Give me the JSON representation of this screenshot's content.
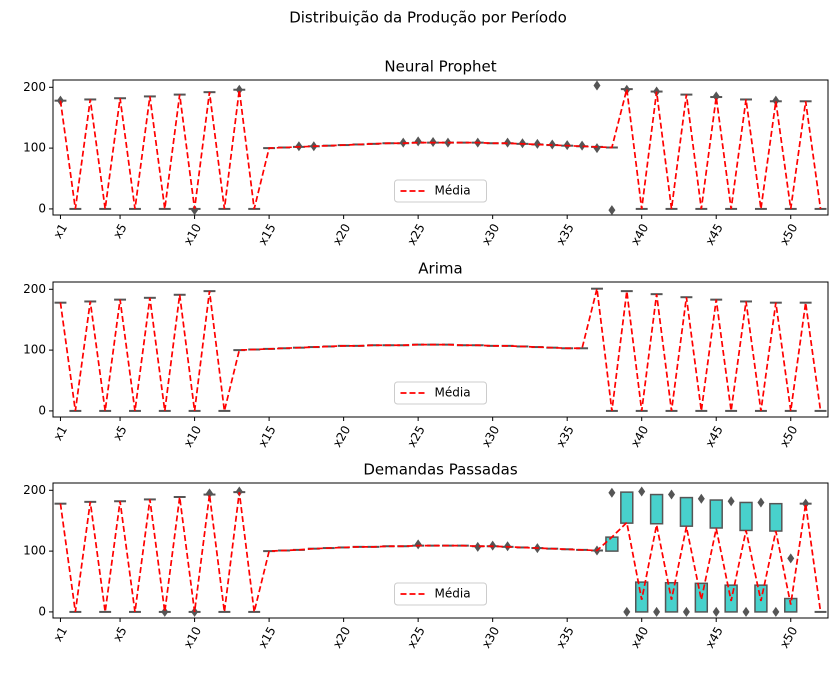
{
  "suptitle": "Distribuição da Produção por Período",
  "chart_data": [
    {
      "type": "box",
      "title": "Neural Prophet",
      "categories": [
        "x1",
        null,
        null,
        null,
        "x5",
        null,
        null,
        null,
        null,
        "x10",
        null,
        null,
        null,
        null,
        "x15",
        null,
        null,
        null,
        null,
        "x20",
        null,
        null,
        null,
        null,
        "x25",
        null,
        null,
        null,
        null,
        "x30",
        null,
        null,
        null,
        null,
        "x35",
        null,
        null,
        null,
        null,
        "x40",
        null,
        null,
        null,
        null,
        "x45",
        null,
        null,
        null,
        null,
        "x50",
        null,
        null
      ],
      "series": [
        {
          "name": "Média",
          "color": "#ff0000",
          "values": [
            178,
            0,
            180,
            0,
            182,
            0,
            185,
            0,
            188,
            0,
            192,
            0,
            196,
            0,
            100,
            101,
            102,
            103,
            104,
            105,
            106,
            107,
            108,
            108,
            109,
            109,
            109,
            109,
            109,
            108,
            108,
            107,
            106,
            105,
            104,
            103,
            102,
            101,
            197,
            0,
            193,
            0,
            188,
            0,
            184,
            0,
            180,
            0,
            177,
            0,
            177,
            0
          ]
        }
      ],
      "boxes": [
        178,
        0,
        180,
        0,
        182,
        0,
        185,
        0,
        188,
        0,
        192,
        0,
        196,
        0,
        100,
        101,
        102,
        103,
        104,
        105,
        106,
        107,
        108,
        108,
        109,
        109,
        109,
        109,
        109,
        108,
        108,
        107,
        106,
        105,
        104,
        103,
        102,
        101,
        197,
        0,
        193,
        0,
        188,
        0,
        184,
        0,
        180,
        0,
        177,
        0,
        177,
        0
      ],
      "outliers": [
        [
          178
        ],
        [],
        [],
        [],
        [],
        [],
        [],
        [],
        [],
        [
          -2
        ],
        [],
        [],
        [
          196
        ],
        [],
        [],
        [],
        [
          103
        ],
        [
          103
        ],
        [],
        [],
        [],
        [],
        [],
        [
          109
        ],
        [
          111
        ],
        [
          110
        ],
        [
          109
        ],
        [],
        [
          109
        ],
        [],
        [
          109
        ],
        [
          108
        ],
        [
          107
        ],
        [
          106
        ],
        [
          105
        ],
        [
          104
        ],
        [
          203,
          100
        ],
        [
          -2
        ],
        [
          196
        ],
        [],
        [
          193
        ],
        [],
        [],
        [],
        [
          185
        ],
        [],
        [],
        [],
        [
          178
        ],
        [],
        [],
        []
      ],
      "box_color": "#48d1cc",
      "ylim": [
        -10,
        212
      ],
      "yticks": [
        0,
        100,
        200
      ],
      "legend": "lower center"
    },
    {
      "type": "box",
      "title": "Arima",
      "categories": [
        "x1",
        null,
        null,
        null,
        "x5",
        null,
        null,
        null,
        null,
        "x10",
        null,
        null,
        null,
        null,
        "x15",
        null,
        null,
        null,
        null,
        "x20",
        null,
        null,
        null,
        null,
        "x25",
        null,
        null,
        null,
        null,
        "x30",
        null,
        null,
        null,
        null,
        "x35",
        null,
        null,
        null,
        null,
        "x40",
        null,
        null,
        null,
        null,
        "x45",
        null,
        null,
        null,
        null,
        "x50",
        null,
        null
      ],
      "series": [
        {
          "name": "Média",
          "color": "#ff0000",
          "values": [
            178,
            0,
            180,
            0,
            183,
            0,
            186,
            0,
            191,
            0,
            197,
            0,
            100,
            101,
            102,
            103,
            104,
            105,
            106,
            107,
            107,
            108,
            108,
            108,
            109,
            109,
            109,
            108,
            108,
            107,
            107,
            106,
            105,
            104,
            103,
            103,
            201,
            0,
            197,
            0,
            192,
            0,
            187,
            0,
            183,
            0,
            180,
            0,
            178,
            0,
            178,
            0
          ]
        }
      ],
      "boxes": [
        178,
        0,
        180,
        0,
        183,
        0,
        186,
        0,
        191,
        0,
        197,
        0,
        100,
        101,
        102,
        103,
        104,
        105,
        106,
        107,
        107,
        108,
        108,
        108,
        109,
        109,
        109,
        108,
        108,
        107,
        107,
        106,
        105,
        104,
        103,
        103,
        201,
        0,
        197,
        0,
        192,
        0,
        187,
        0,
        183,
        0,
        180,
        0,
        178,
        0,
        178,
        0
      ],
      "box_color": "#48d1cc",
      "ylim": [
        -10,
        212
      ],
      "yticks": [
        0,
        100,
        200
      ],
      "legend": "lower center"
    },
    {
      "type": "box",
      "title": "Demandas Passadas",
      "categories": [
        "x1",
        null,
        null,
        null,
        "x5",
        null,
        null,
        null,
        null,
        "x10",
        null,
        null,
        null,
        null,
        "x15",
        null,
        null,
        null,
        null,
        "x20",
        null,
        null,
        null,
        null,
        "x25",
        null,
        null,
        null,
        null,
        "x30",
        null,
        null,
        null,
        null,
        "x35",
        null,
        null,
        null,
        null,
        "x40",
        null,
        null,
        null,
        null,
        "x45",
        null,
        null,
        null,
        null,
        "x50",
        null,
        null
      ],
      "series": [
        {
          "name": "Média",
          "color": "#ff0000",
          "values": [
            178,
            0,
            181,
            0,
            182,
            0,
            185,
            0,
            189,
            0,
            193,
            0,
            197,
            0,
            100,
            101,
            102,
            104,
            105,
            106,
            107,
            107,
            108,
            108,
            109,
            109,
            109,
            109,
            108,
            108,
            107,
            106,
            105,
            104,
            103,
            102,
            101,
            123,
            147,
            20,
            143,
            20,
            140,
            20,
            137,
            18,
            134,
            18,
            133,
            12,
            178,
            0
          ]
        }
      ],
      "boxes": [
        178,
        0,
        181,
        0,
        182,
        0,
        185,
        0,
        189,
        0,
        193,
        0,
        197,
        0,
        100,
        101,
        102,
        104,
        105,
        106,
        107,
        107,
        108,
        108,
        109,
        109,
        109,
        109,
        108,
        108,
        107,
        106,
        105,
        104,
        103,
        102,
        101,
        [
          100,
          123
        ],
        [
          146,
          197
        ],
        [
          0,
          49
        ],
        [
          145,
          193
        ],
        [
          0,
          48
        ],
        [
          141,
          188
        ],
        [
          0,
          47
        ],
        [
          138,
          184
        ],
        [
          0,
          44
        ],
        [
          134,
          180
        ],
        [
          0,
          44
        ],
        [
          133,
          178
        ],
        [
          0,
          22
        ],
        178,
        0
      ],
      "outliers": [
        [],
        [],
        [],
        [],
        [],
        [],
        [],
        [
          0
        ],
        [],
        [
          0
        ],
        [
          195
        ],
        [],
        [
          198
        ],
        [],
        [],
        [],
        [],
        [],
        [],
        [],
        [],
        [],
        [],
        [],
        [
          111
        ],
        [],
        [],
        [],
        [
          107
        ],
        [
          109
        ],
        [
          108
        ],
        [],
        [
          105
        ],
        [],
        [],
        [],
        [
          101
        ],
        [
          196
        ],
        [
          0
        ],
        [
          198
        ],
        [
          0
        ],
        [
          193
        ],
        [
          0
        ],
        [
          186
        ],
        [
          0
        ],
        [
          182
        ],
        [
          0
        ],
        [
          180
        ],
        [
          0
        ],
        [
          88
        ],
        [
          178
        ],
        []
      ],
      "box_color": "#48d1cc",
      "ylim": [
        -10,
        212
      ],
      "yticks": [
        0,
        100,
        200
      ],
      "legend": "lower center"
    }
  ]
}
